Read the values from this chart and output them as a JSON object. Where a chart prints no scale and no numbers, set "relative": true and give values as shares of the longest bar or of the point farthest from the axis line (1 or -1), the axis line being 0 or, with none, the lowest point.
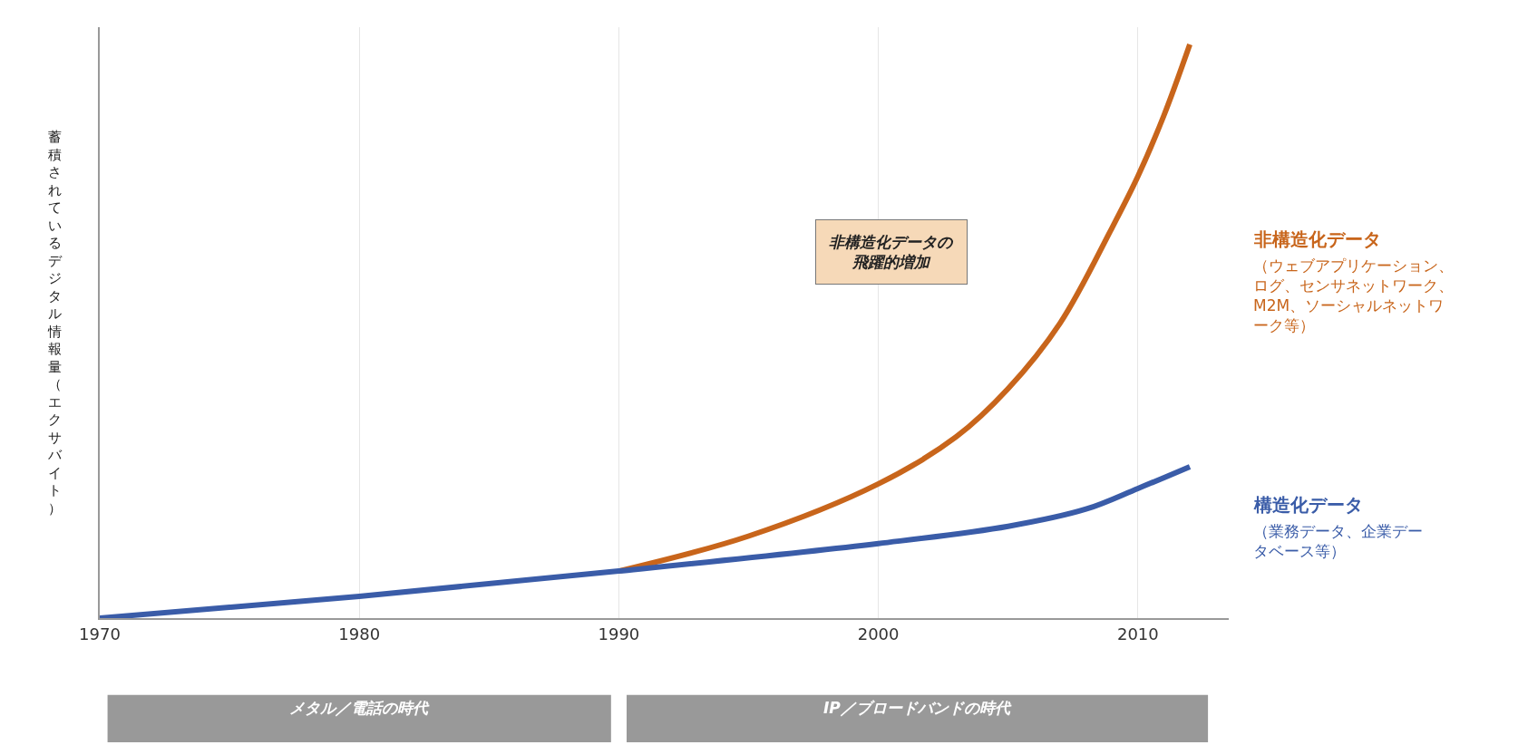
{
  "chart_data": {
    "type": "line",
    "relative": true,
    "ylabel": "蓄積されているデジタル情報量（エクサバイト）",
    "xlim": [
      1970,
      2013.5
    ],
    "xticks": [
      1970,
      1980,
      1990,
      2000,
      2010
    ],
    "grid": "x",
    "legend": false,
    "series": [
      {
        "name": "非構造化データ",
        "color": "#c8651b",
        "x": [
          1990,
          1995,
          2000,
          2003,
          2005,
          2007,
          2009,
          2010,
          2011,
          2012
        ],
        "values": [
          0.082,
          0.143,
          0.234,
          0.316,
          0.4,
          0.514,
          0.68,
          0.77,
          0.876,
          1
        ]
      },
      {
        "name": "構造化データ",
        "color": "#3a5ca8",
        "x": [
          1970,
          1980,
          1990,
          2000,
          2005,
          2008,
          2010,
          2012
        ],
        "values": [
          0,
          0.038,
          0.082,
          0.13,
          0.16,
          0.19,
          0.226,
          0.264
        ]
      }
    ],
    "annotations": [
      "非構造化データの飛躍的増加",
      "（ウェブアプリケーション、ログ、センサネットワーク、M2M、ソーシャルネットワーク等）",
      "（業務データ、企業データベース等）",
      "メタル／電話の時代",
      "IP／ブロードバンドの時代"
    ]
  }
}
